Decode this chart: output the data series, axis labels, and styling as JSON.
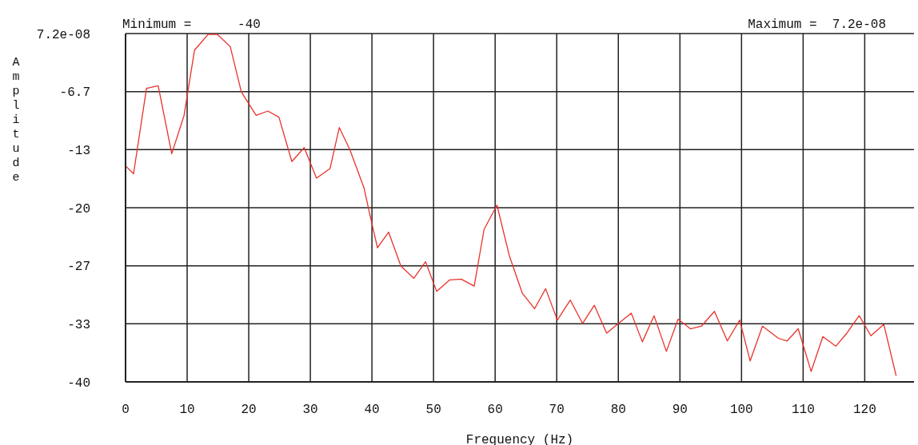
{
  "chart_data": {
    "type": "line",
    "xlabel": "Frequency (Hz)",
    "ylabel": "Amplitude",
    "annotations": [
      "Minimum =      -40",
      "Maximum =  7.2e-08"
    ],
    "x": [
      0,
      1.3,
      3.4,
      5.3,
      7.5,
      9.5,
      11.2,
      13.4,
      14.9,
      17.0,
      18.8,
      21.2,
      23.1,
      24.9,
      27.0,
      29.0,
      31.0,
      33.2,
      34.7,
      36.4,
      38.7,
      39.7,
      40.9,
      42.7,
      44.7,
      46.8,
      48.7,
      50.5,
      52.6,
      54.5,
      56.6,
      58.2,
      59.4,
      60.3,
      62.3,
      64.4,
      66.4,
      68.2,
      70.1,
      72.2,
      74.2,
      76.1,
      78.1,
      80.0,
      82.1,
      83.9,
      85.8,
      87.8,
      89.7,
      91.7,
      93.5,
      95.6,
      97.7,
      99.7,
      101.4,
      103.4,
      106.0,
      107.4,
      109.2,
      111.3,
      113.2,
      115.3,
      117.1,
      119.1,
      121.0,
      123.1,
      125.1
    ],
    "series": [
      {
        "color": "#e8322a",
        "values": [
          -15.2,
          -16.1,
          -6.3,
          -6.0,
          -13.8,
          -9.4,
          -1.9,
          -0.1,
          -0.1,
          -1.5,
          -6.7,
          -9.4,
          -8.9,
          -9.6,
          -14.7,
          -13.1,
          -16.6,
          -15.5,
          -10.8,
          -13.3,
          -17.7,
          -20.9,
          -24.6,
          -22.8,
          -26.7,
          -28.1,
          -26.2,
          -29.6,
          -28.3,
          -28.2,
          -29.0,
          -22.5,
          -20.9,
          -19.7,
          -25.5,
          -29.8,
          -31.6,
          -29.3,
          -32.9,
          -30.6,
          -33.3,
          -31.2,
          -34.4,
          -33.3,
          -32.1,
          -35.4,
          -32.4,
          -36.5,
          -32.8,
          -33.9,
          -33.6,
          -31.9,
          -35.3,
          -32.9,
          -37.6,
          -33.6,
          -35.0,
          -35.3,
          -33.9,
          -38.8,
          -34.8,
          -35.9,
          -34.4,
          -32.4,
          -34.7,
          -33.4,
          -39.3
        ]
      }
    ],
    "xlim": [
      0,
      128
    ],
    "xticks": [
      0,
      10,
      20,
      30,
      40,
      50,
      60,
      70,
      80,
      90,
      100,
      110,
      120
    ],
    "ylim": [
      -40,
      7.2e-08
    ],
    "yticks": [
      {
        "value": 7.2e-08,
        "label": "7.2e-08"
      },
      {
        "value": -6.667,
        "label": "-6.7"
      },
      {
        "value": -13.333,
        "label": "-13"
      },
      {
        "value": -20,
        "label": "-20"
      },
      {
        "value": -26.667,
        "label": "-27"
      },
      {
        "value": -33.333,
        "label": "-33"
      },
      {
        "value": -40,
        "label": "-40"
      }
    ],
    "grid": true,
    "marker": "none",
    "line_style": "solid"
  }
}
